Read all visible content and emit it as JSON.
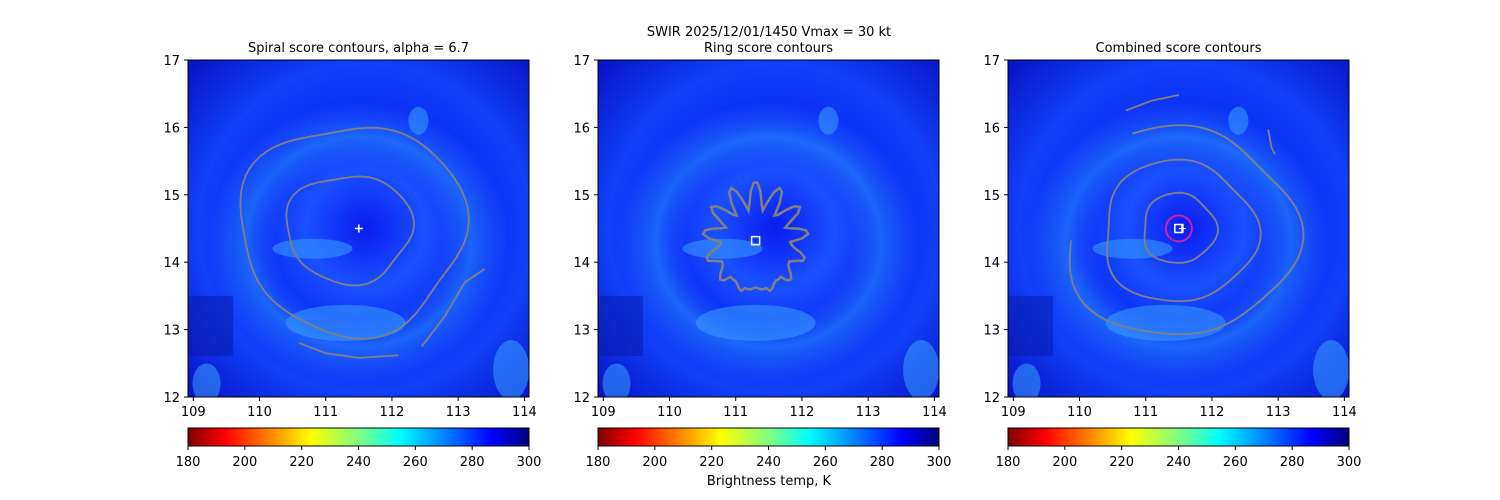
{
  "suptitle": "SWIR  2025/12/01/1450    Vmax = 30 kt",
  "colorbar_label": "Brightness temp, K",
  "colors": {
    "contour": "#808080",
    "marker": "#ffffff",
    "circle": "#cc22aa"
  },
  "chart_data": [
    {
      "type": "heatmap",
      "title": "Spiral score contours, alpha =  6.7",
      "xlim": [
        108.92,
        114.07
      ],
      "ylim": [
        12,
        17
      ],
      "xticks": [
        "109",
        "110",
        "111",
        "112",
        "113",
        "114"
      ],
      "yticks": [
        "12",
        "13",
        "14",
        "15",
        "16",
        "17"
      ],
      "center": [
        111.5,
        14.5
      ],
      "marker": "plus",
      "contours": [
        {
          "kind": "ring",
          "cx": 111.4,
          "cy": 14.5,
          "rx": 1.7,
          "ry": 1.55
        },
        {
          "kind": "ring",
          "cx": 111.35,
          "cy": 14.5,
          "rx": 0.95,
          "ry": 0.8
        },
        {
          "kind": "line",
          "pts": [
            [
              110.6,
              12.8
            ],
            [
              111.0,
              12.65
            ],
            [
              111.5,
              12.58
            ],
            [
              112.1,
              12.62
            ]
          ]
        },
        {
          "kind": "line",
          "pts": [
            [
              112.45,
              12.75
            ],
            [
              112.8,
              13.2
            ],
            [
              113.1,
              13.7
            ],
            [
              113.4,
              13.9
            ]
          ]
        }
      ],
      "colorbar": {
        "ticks": [
          "180",
          "200",
          "220",
          "240",
          "260",
          "280",
          "300"
        ],
        "range": [
          180,
          300
        ]
      }
    },
    {
      "type": "heatmap",
      "title": "Ring score contours",
      "xlim": [
        108.92,
        114.07
      ],
      "ylim": [
        12,
        17
      ],
      "xticks": [
        "109",
        "110",
        "111",
        "112",
        "113",
        "114"
      ],
      "yticks": [
        "12",
        "13",
        "14",
        "15",
        "16",
        "17"
      ],
      "center": [
        111.3,
        14.32
      ],
      "marker": "square",
      "contours": [
        {
          "kind": "blob",
          "cx": 111.3,
          "cy": 14.3,
          "rx": 0.7,
          "ry": 0.75
        }
      ],
      "colorbar": {
        "ticks": [
          "180",
          "200",
          "220",
          "240",
          "260",
          "280",
          "300"
        ],
        "range": [
          180,
          300
        ]
      }
    },
    {
      "type": "heatmap",
      "title": "Combined score contours",
      "xlim": [
        108.92,
        114.07
      ],
      "ylim": [
        12,
        17
      ],
      "xticks": [
        "109",
        "110",
        "111",
        "112",
        "113",
        "114"
      ],
      "yticks": [
        "12",
        "13",
        "14",
        "15",
        "16",
        "17"
      ],
      "center": [
        111.5,
        14.5
      ],
      "marker": "square-plus-circle",
      "contours": [
        {
          "kind": "ring",
          "cx": 111.5,
          "cy": 14.5,
          "rx": 0.55,
          "ry": 0.52
        },
        {
          "kind": "ring",
          "cx": 111.5,
          "cy": 14.45,
          "rx": 1.15,
          "ry": 1.05
        },
        {
          "kind": "arc",
          "cx": 111.5,
          "cy": 14.45,
          "rx": 1.75,
          "ry": 1.55,
          "a0": -175,
          "a1": 115
        },
        {
          "kind": "line",
          "pts": [
            [
              110.7,
              16.25
            ],
            [
              111.1,
              16.4
            ],
            [
              111.5,
              16.48
            ]
          ]
        },
        {
          "kind": "line",
          "pts": [
            [
              112.85,
              15.97
            ],
            [
              112.9,
              15.7
            ],
            [
              112.95,
              15.6
            ]
          ]
        }
      ],
      "colorbar": {
        "ticks": [
          "180",
          "200",
          "220",
          "240",
          "260",
          "280",
          "300"
        ],
        "range": [
          180,
          300
        ]
      }
    }
  ]
}
